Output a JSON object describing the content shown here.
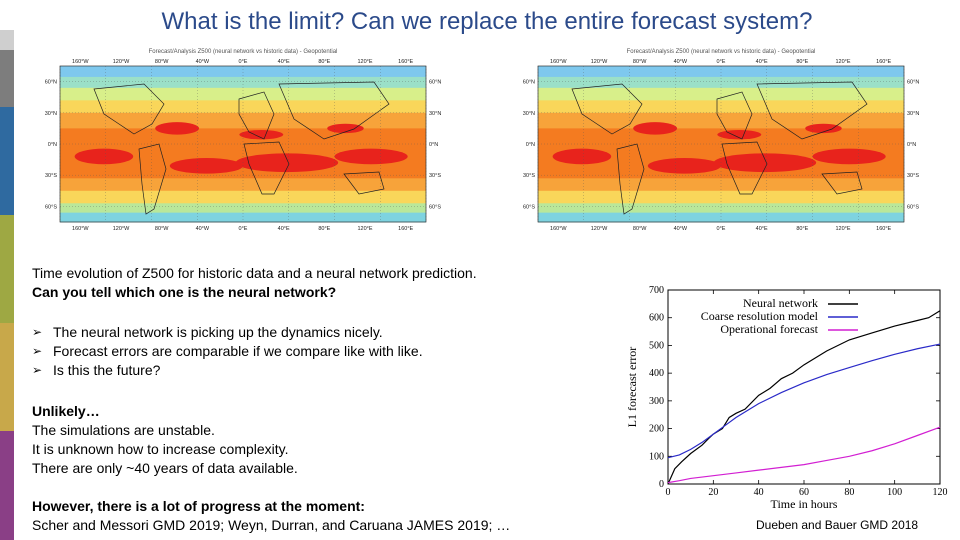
{
  "slide": {
    "title": "What is the limit? Can we replace the entire forecast system?",
    "sidebar_colors": [
      "#ffffff",
      "#cfcfcf",
      "#7d7d7d",
      "#2f6aa0",
      "#9ea843",
      "#c8a84a",
      "#8a3f86"
    ]
  },
  "maps": [
    {
      "caption": "Forecast/Analysis Z500 (neural network vs historic data) - Geopotential",
      "lon_labels": [
        "160°W",
        "120°W",
        "80°W",
        "40°W",
        "0°E",
        "40°E",
        "80°E",
        "120°E",
        "160°E"
      ],
      "lat_labels": [
        "60°N",
        "30°N",
        "0°N",
        "30°S",
        "60°S"
      ]
    },
    {
      "caption": "Forecast/Analysis Z500 (neural network vs historic data) - Geopotential",
      "lon_labels": [
        "160°W",
        "120°W",
        "80°W",
        "40°W",
        "0°E",
        "40°E",
        "80°E",
        "120°E",
        "160°E"
      ],
      "lat_labels": [
        "60°N",
        "30°N",
        "0°N",
        "30°S",
        "60°S"
      ]
    }
  ],
  "intro": {
    "line1": "Time evolution of Z500 for historic data and a neural network prediction.",
    "line2": "Can you tell which one is the neural network?"
  },
  "bullets": [
    "The neural network is picking up the dynamics nicely.",
    "Forecast errors are comparable if we compare like with like.",
    "Is this the future?"
  ],
  "unlikely": {
    "heading": "Unlikely…",
    "lines": [
      "The simulations are unstable.",
      "It is unknown how to increase complexity.",
      "There are only ~40 years of data available."
    ]
  },
  "progress": {
    "heading": "However, there is a lot of progress at the moment:",
    "refs": "Scher and Messori GMD 2019; Weyn, Durran, and Caruana JAMES 2019; …"
  },
  "citation": "Dueben and Bauer GMD 2018",
  "chart_data": {
    "type": "line",
    "xlabel": "Time in hours",
    "ylabel": "L1 forecast error",
    "xlim": [
      0,
      120
    ],
    "ylim": [
      0,
      700
    ],
    "xticks": [
      0,
      20,
      40,
      60,
      80,
      100,
      120
    ],
    "yticks": [
      0,
      100,
      200,
      300,
      400,
      500,
      600,
      700
    ],
    "legend_position": "top-left",
    "series": [
      {
        "name": "Neural network",
        "color": "#000000",
        "x": [
          0,
          3,
          6,
          10,
          15,
          18,
          20,
          24,
          27,
          30,
          34,
          40,
          45,
          50,
          55,
          60,
          70,
          80,
          90,
          100,
          110,
          115,
          120
        ],
        "y": [
          0,
          55,
          80,
          110,
          140,
          165,
          180,
          200,
          240,
          255,
          270,
          320,
          345,
          380,
          400,
          430,
          480,
          520,
          545,
          570,
          590,
          600,
          625
        ]
      },
      {
        "name": "Coarse resolution model",
        "color": "#2a2ac8",
        "x": [
          0,
          5,
          10,
          15,
          20,
          25,
          30,
          40,
          50,
          60,
          70,
          80,
          90,
          100,
          110,
          120
        ],
        "y": [
          95,
          105,
          125,
          150,
          180,
          210,
          240,
          290,
          330,
          365,
          395,
          420,
          445,
          468,
          488,
          505
        ]
      },
      {
        "name": "Operational forecast",
        "color": "#d21fd2",
        "x": [
          0,
          5,
          10,
          20,
          30,
          40,
          50,
          60,
          70,
          80,
          90,
          100,
          110,
          120
        ],
        "y": [
          5,
          12,
          20,
          30,
          40,
          50,
          60,
          70,
          85,
          100,
          120,
          145,
          175,
          205
        ]
      }
    ]
  }
}
